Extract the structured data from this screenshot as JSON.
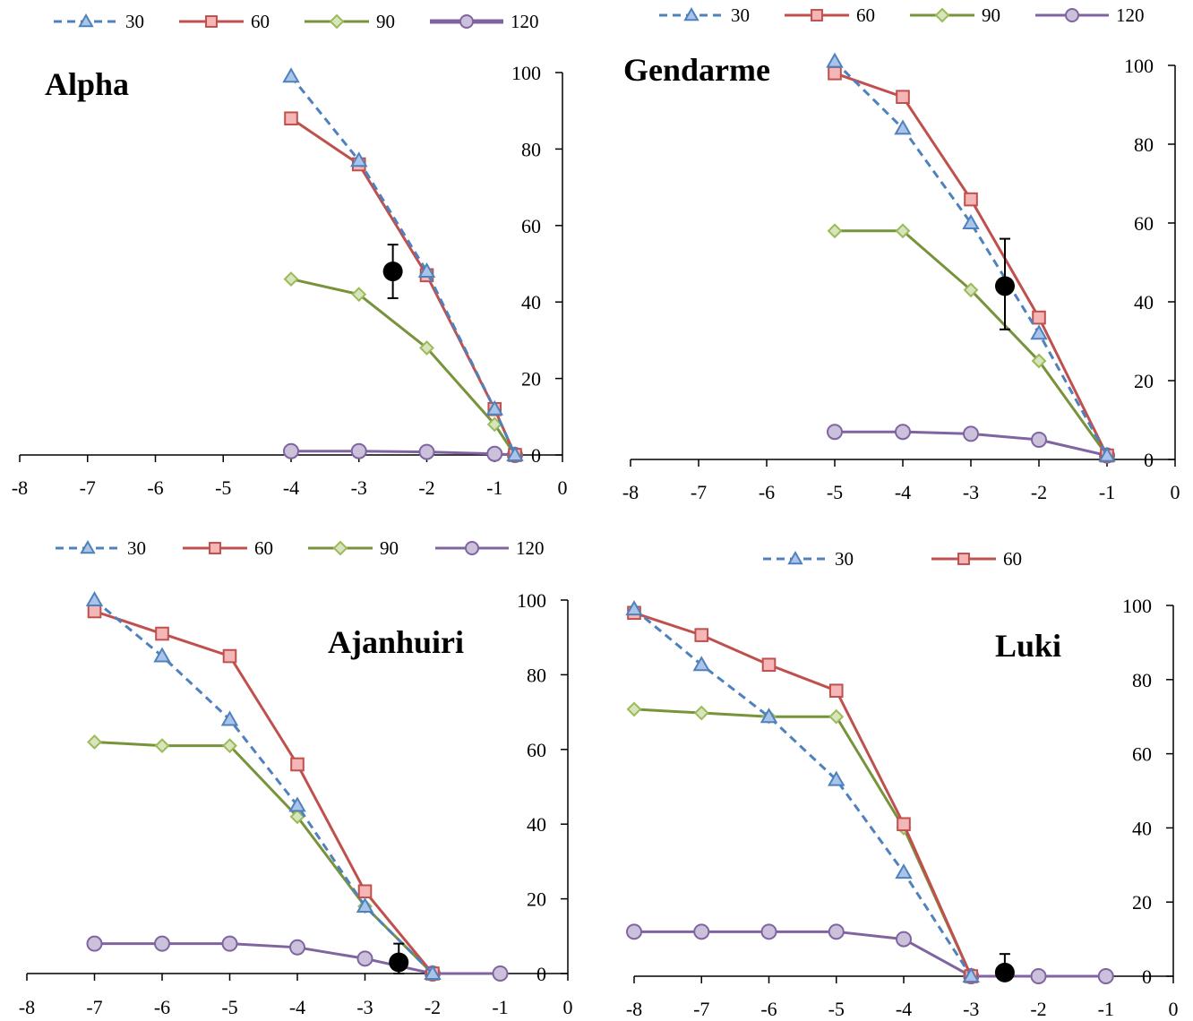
{
  "colors": {
    "s30_line": "#4f81bd",
    "s30_fill": "#a9c4e8",
    "s30_stroke": "#4f81bd",
    "s60_line": "#c0504d",
    "s60_fill": "#f4b6b6",
    "s60_stroke": "#c0504d",
    "s90_line": "#77933c",
    "s90_fill": "#d7e4bd",
    "s90_stroke": "#9bbb59",
    "s120_line": "#8064a2",
    "s120_fill": "#ccc1da",
    "s120_stroke": "#8064a2",
    "ref_point": "#000000"
  },
  "chart_data": [
    {
      "type": "line",
      "title": "Alpha",
      "xlim": [
        -8,
        0
      ],
      "ylim": [
        0,
        100
      ],
      "x_ticks": [
        "-8",
        "-7",
        "-6",
        "-5",
        "-4",
        "-3",
        "-2",
        "-1",
        "0"
      ],
      "y_ticks": [
        "100",
        "80",
        "60",
        "40",
        "20",
        "0"
      ],
      "legend": [
        "30",
        "60",
        "90",
        "120"
      ],
      "series": [
        {
          "name": "30",
          "marker": "triangle",
          "dash": true,
          "points": [
            [
              -4,
              99
            ],
            [
              -3,
              77
            ],
            [
              -2,
              48
            ],
            [
              -1,
              12
            ],
            [
              -0.7,
              0
            ]
          ]
        },
        {
          "name": "60",
          "marker": "square",
          "dash": false,
          "points": [
            [
              -4,
              88
            ],
            [
              -3,
              76
            ],
            [
              -2,
              47
            ],
            [
              -1,
              12
            ],
            [
              -0.7,
              0
            ]
          ]
        },
        {
          "name": "90",
          "marker": "diamond",
          "dash": false,
          "points": [
            [
              -4,
              46
            ],
            [
              -3,
              42
            ],
            [
              -2,
              28
            ],
            [
              -1,
              8
            ],
            [
              -0.7,
              0
            ]
          ]
        },
        {
          "name": "120",
          "marker": "circle",
          "dash": false,
          "points": [
            [
              -4,
              1
            ],
            [
              -3,
              1
            ],
            [
              -2,
              0.8
            ],
            [
              -1,
              0.3
            ],
            [
              -0.7,
              0
            ]
          ]
        }
      ],
      "reference": {
        "x": -2.5,
        "y": 48,
        "err_low": 41,
        "err_high": 55
      }
    },
    {
      "type": "line",
      "title": "Gendarme",
      "xlim": [
        -8,
        0
      ],
      "ylim": [
        0,
        100
      ],
      "x_ticks": [
        "-8",
        "-7",
        "-6",
        "-5",
        "-4",
        "-3",
        "-2",
        "-1",
        "0"
      ],
      "y_ticks": [
        "100",
        "80",
        "60",
        "40",
        "20",
        "0"
      ],
      "legend": [
        "30",
        "60",
        "90",
        "120"
      ],
      "series": [
        {
          "name": "30",
          "marker": "triangle",
          "dash": true,
          "points": [
            [
              -5,
              101
            ],
            [
              -4,
              84
            ],
            [
              -3,
              60
            ],
            [
              -2,
              32
            ],
            [
              -1,
              1
            ]
          ]
        },
        {
          "name": "60",
          "marker": "square",
          "dash": false,
          "points": [
            [
              -5,
              98
            ],
            [
              -4,
              92
            ],
            [
              -3,
              66
            ],
            [
              -2,
              36
            ],
            [
              -1,
              1
            ]
          ]
        },
        {
          "name": "90",
          "marker": "diamond",
          "dash": false,
          "points": [
            [
              -5,
              58
            ],
            [
              -4,
              58
            ],
            [
              -3,
              43
            ],
            [
              -2,
              25
            ],
            [
              -1,
              1
            ]
          ]
        },
        {
          "name": "120",
          "marker": "circle",
          "dash": false,
          "points": [
            [
              -5,
              7
            ],
            [
              -4,
              7
            ],
            [
              -3,
              6.5
            ],
            [
              -2,
              5
            ],
            [
              -1,
              1
            ]
          ]
        }
      ],
      "reference": {
        "x": -2.5,
        "y": 44,
        "err_low": 33,
        "err_high": 56
      }
    },
    {
      "type": "line",
      "title": "Ajanhuiri",
      "xlim": [
        -8,
        0
      ],
      "ylim": [
        0,
        100
      ],
      "x_ticks": [
        "-8",
        "-7",
        "-6",
        "-5",
        "-4",
        "-3",
        "-2",
        "-1",
        "0"
      ],
      "y_ticks": [
        "100",
        "80",
        "60",
        "40",
        "20",
        "0"
      ],
      "legend": [
        "30",
        "60",
        "90",
        "120"
      ],
      "series": [
        {
          "name": "30",
          "marker": "triangle",
          "dash": true,
          "points": [
            [
              -7,
              100
            ],
            [
              -6,
              85
            ],
            [
              -5,
              68
            ],
            [
              -4,
              45
            ],
            [
              -3,
              18
            ],
            [
              -2,
              0
            ]
          ]
        },
        {
          "name": "60",
          "marker": "square",
          "dash": false,
          "points": [
            [
              -7,
              97
            ],
            [
              -6,
              91
            ],
            [
              -5,
              85
            ],
            [
              -4,
              56
            ],
            [
              -3,
              22
            ],
            [
              -2,
              0
            ]
          ]
        },
        {
          "name": "90",
          "marker": "diamond",
          "dash": false,
          "points": [
            [
              -7,
              62
            ],
            [
              -6,
              61
            ],
            [
              -5,
              61
            ],
            [
              -4,
              42
            ],
            [
              -3,
              18
            ],
            [
              -2,
              0
            ]
          ]
        },
        {
          "name": "120",
          "marker": "circle",
          "dash": false,
          "points": [
            [
              -7,
              8
            ],
            [
              -6,
              8
            ],
            [
              -5,
              8
            ],
            [
              -4,
              7
            ],
            [
              -3,
              4
            ],
            [
              -2,
              0
            ],
            [
              -1,
              0
            ]
          ]
        }
      ],
      "reference": {
        "x": -2.5,
        "y": 3,
        "err_low": 0,
        "err_high": 8
      }
    },
    {
      "type": "line",
      "title": "Luki",
      "xlim": [
        -8,
        0
      ],
      "ylim": [
        0,
        100
      ],
      "x_ticks": [
        "-8",
        "-7",
        "-6",
        "-5",
        "-4",
        "-3",
        "-2",
        "-1",
        "0"
      ],
      "y_ticks": [
        "100",
        "80",
        "60",
        "40",
        "20",
        "0"
      ],
      "legend": [
        "30",
        "60"
      ],
      "series": [
        {
          "name": "30",
          "marker": "triangle",
          "dash": true,
          "points": [
            [
              -8,
              99
            ],
            [
              -7,
              84
            ],
            [
              -6,
              70
            ],
            [
              -5,
              53
            ],
            [
              -4,
              28
            ],
            [
              -3,
              0
            ]
          ]
        },
        {
          "name": "60",
          "marker": "square",
          "dash": false,
          "points": [
            [
              -8,
              98
            ],
            [
              -7,
              92
            ],
            [
              -6,
              84
            ],
            [
              -5,
              77
            ],
            [
              -4,
              41
            ],
            [
              -3,
              0
            ]
          ]
        },
        {
          "name": "90",
          "marker": "diamond",
          "dash": false,
          "points": [
            [
              -8,
              72
            ],
            [
              -7,
              71
            ],
            [
              -6,
              70
            ],
            [
              -5,
              70
            ],
            [
              -4,
              40
            ],
            [
              -3,
              0
            ]
          ]
        },
        {
          "name": "120",
          "marker": "circle",
          "dash": false,
          "points": [
            [
              -8,
              12
            ],
            [
              -7,
              12
            ],
            [
              -6,
              12
            ],
            [
              -5,
              12
            ],
            [
              -4,
              10
            ],
            [
              -3,
              0
            ],
            [
              -2,
              0
            ],
            [
              -1,
              0
            ]
          ]
        }
      ],
      "reference": {
        "x": -2.5,
        "y": 1,
        "err_low": 0,
        "err_high": 6
      }
    }
  ]
}
